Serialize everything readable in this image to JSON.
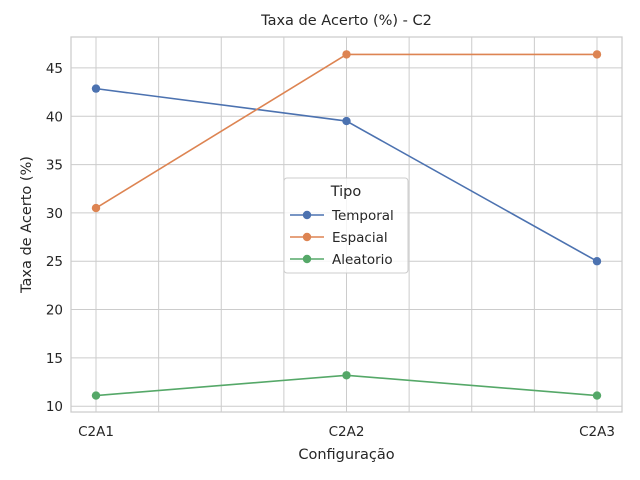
{
  "chart_data": {
    "type": "line",
    "title": "Taxa de Acerto (%) - C2",
    "xlabel": "Configuração",
    "ylabel": "Taxa de Acerto (%)",
    "categories": [
      "C2A1",
      "C2A2",
      "C2A3"
    ],
    "ylim": [
      9.4,
      48.2
    ],
    "yticks": [
      10,
      15,
      20,
      25,
      30,
      35,
      40,
      45
    ],
    "grid": true,
    "legend": {
      "title": "Tipo",
      "position": "center"
    },
    "series": [
      {
        "name": "Temporal",
        "color": "#4c72b0",
        "values": [
          42.86,
          39.5,
          25.0
        ]
      },
      {
        "name": "Espacial",
        "color": "#dd8452",
        "values": [
          30.5,
          46.4,
          46.4
        ]
      },
      {
        "name": "Aleatorio",
        "color": "#55a868",
        "values": [
          11.1,
          13.2,
          11.1
        ]
      }
    ]
  }
}
